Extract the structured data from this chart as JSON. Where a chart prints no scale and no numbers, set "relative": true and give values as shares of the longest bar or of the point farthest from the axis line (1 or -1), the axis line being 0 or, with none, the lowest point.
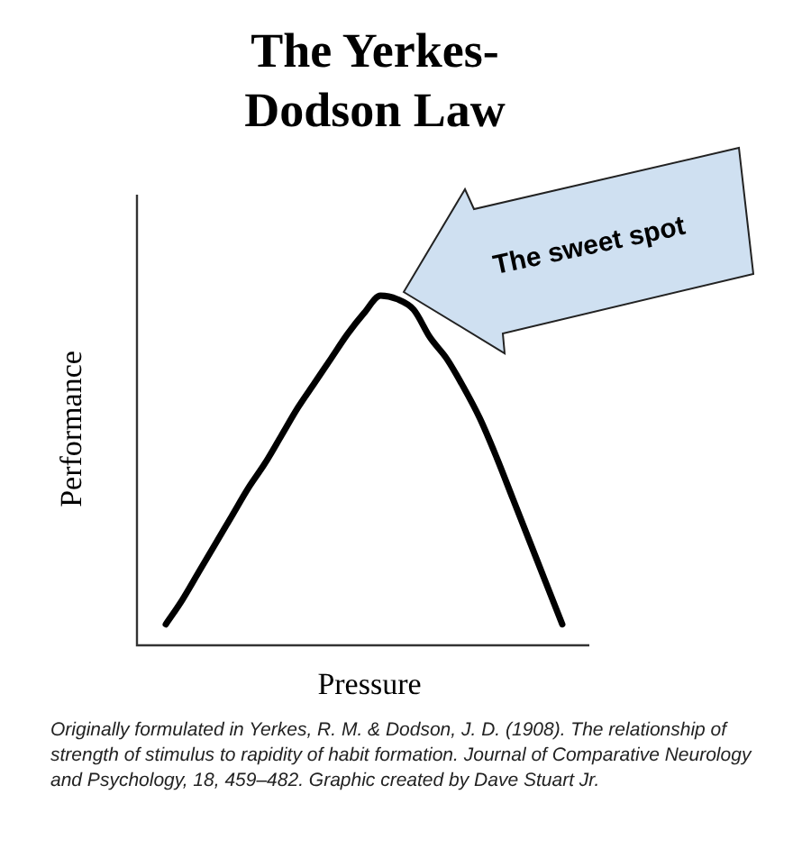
{
  "chart_data": {
    "type": "line",
    "title": "The Yerkes-Dodson Law",
    "xlabel": "Pressure",
    "ylabel": "Performance",
    "relative": true,
    "marker": "none",
    "color": "#000000",
    "categories": [
      null,
      null,
      null,
      null,
      null,
      null,
      null,
      null,
      null,
      null,
      null,
      null,
      null,
      null,
      null,
      null,
      null,
      null,
      null,
      null,
      null,
      null,
      null,
      null,
      null
    ],
    "values": [
      0.06,
      0.13,
      0.21,
      0.29,
      0.37,
      0.45,
      0.52,
      0.6,
      0.68,
      0.75,
      0.82,
      0.89,
      0.95,
      1,
      0.99,
      0.96,
      0.88,
      0.82,
      0.74,
      0.65,
      0.54,
      0.42,
      0.3,
      0.18,
      0.06
    ],
    "annotations": [
      "The sweet spot",
      "Originally formulated in Yerkes, R. M. & Dodson, J. D. (1908). The relationship of strength of stimulus to rapidity of habit formation. Journal of Comparative Neurology and Psychology, 18, 459–482. Graphic created by Dave Stuart Jr."
    ]
  }
}
